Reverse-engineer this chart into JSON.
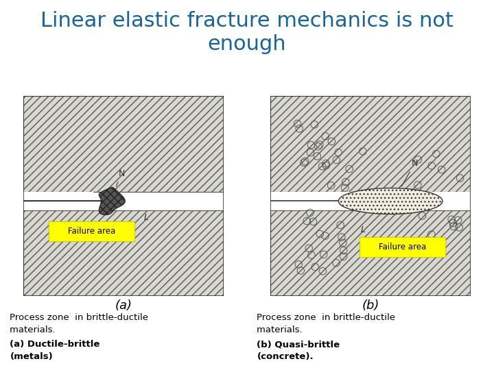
{
  "title_line1": "Linear elastic fracture mechanics is not",
  "title_line2": "enough",
  "title_color": "#1a6496",
  "title_fontsize": 22,
  "bg_color": "#ffffff",
  "bottom_panel_color": "#b0bec5",
  "label_a": "(a)",
  "label_b": "(b)",
  "failure_area_bg": "#ffff00",
  "failure_area_text": "Failure area",
  "caption_left_normal": "Process zone  in brittle-ductile\nmaterials. ",
  "caption_left_bold": "(a) Ductile-brittle\n(metals)",
  "caption_right_normal": "Process zone  in brittle-ductile\nmaterials. ",
  "caption_right_bold": "(b) Quasi-brittle\n(concrete).",
  "hatch_color": "#333333",
  "diagram_bg": "#f5f5f0"
}
